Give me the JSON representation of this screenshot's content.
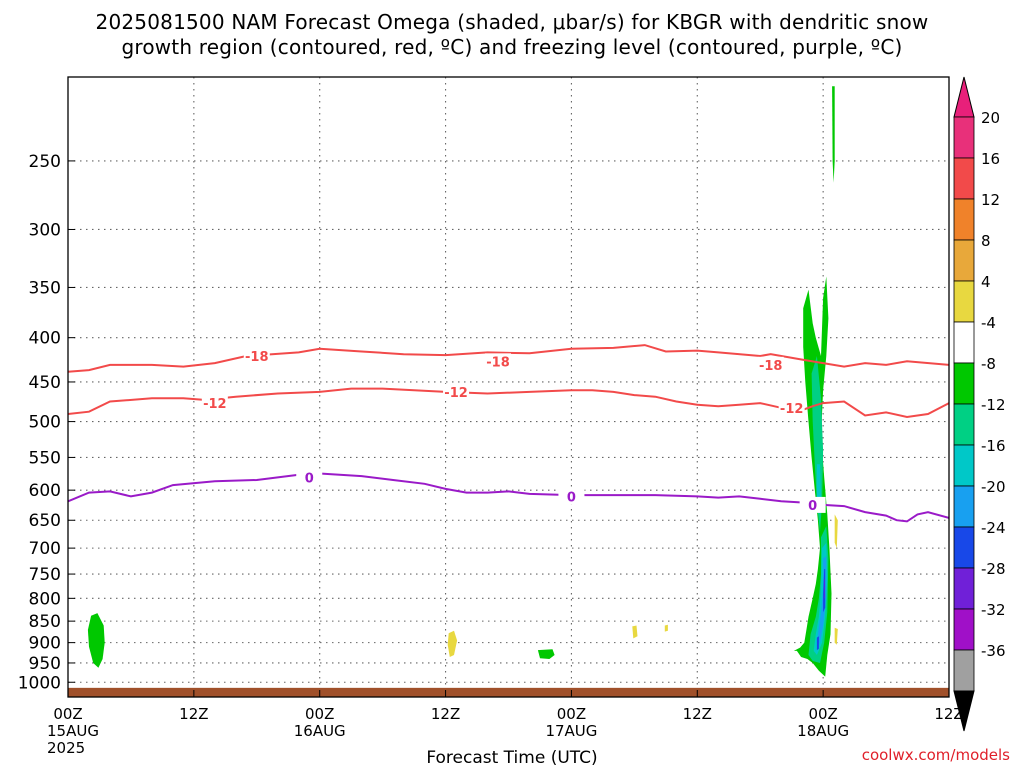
{
  "title_line1": "2025081500 NAM Forecast Omega (shaded, μbar/s) for KBGR with dendritic snow",
  "title_line2": "growth region (contoured, red, ºC) and freezing level (contoured, purple, ºC)",
  "credit": "coolwx.com/models",
  "chart_data": {
    "type": "contour",
    "title": "2025081500 NAM Forecast Omega (shaded, μbar/s) for KBGR with dendritic snow growth region (contoured, red, ºC) and freezing level (contoured, purple, ºC)",
    "xlabel": "Forecast Time (UTC)",
    "ylabel": "",
    "y_scale": "log",
    "y_inverted": true,
    "ylim": [
      1040,
      200
    ],
    "xlim_hours": [
      0,
      84
    ],
    "y_ticks": [
      250,
      300,
      350,
      400,
      450,
      500,
      550,
      600,
      650,
      700,
      750,
      800,
      850,
      900,
      950,
      1000
    ],
    "x_ticks": [
      {
        "h": 0,
        "label": "00Z",
        "sub": [
          "15AUG",
          "2025"
        ]
      },
      {
        "h": 12,
        "label": "12Z",
        "sub": []
      },
      {
        "h": 24,
        "label": "00Z",
        "sub": [
          "16AUG"
        ]
      },
      {
        "h": 36,
        "label": "12Z",
        "sub": []
      },
      {
        "h": 48,
        "label": "00Z",
        "sub": [
          "17AUG"
        ]
      },
      {
        "h": 60,
        "label": "12Z",
        "sub": []
      },
      {
        "h": 72,
        "label": "00Z",
        "sub": [
          "18AUG"
        ]
      },
      {
        "h": 84,
        "label": "12Z",
        "sub": []
      }
    ],
    "grid": true,
    "colorbar": {
      "units": "μbar/s",
      "levels": [
        {
          "label": "20",
          "color": "#e8307a"
        },
        {
          "label": "16",
          "color": "#f24a4a"
        },
        {
          "label": "12",
          "color": "#f0822a"
        },
        {
          "label": "8",
          "color": "#e8a83a"
        },
        {
          "label": "4",
          "color": "#e8d840"
        },
        {
          "label": "-4",
          "color": "#ffffff"
        },
        {
          "label": "-8",
          "color": "#00c800"
        },
        {
          "label": "-12",
          "color": "#00d084"
        },
        {
          "label": "-16",
          "color": "#00c8c8"
        },
        {
          "label": "-20",
          "color": "#18a0f0"
        },
        {
          "label": "-24",
          "color": "#1848e8"
        },
        {
          "label": "-28",
          "color": "#7020d8"
        },
        {
          "label": "-32",
          "color": "#a010c8"
        },
        {
          "label": "-36",
          "color": "#a0a0a0"
        }
      ],
      "top_arrow_color": "#e8207a",
      "bottom_arrow_color": "#000000"
    },
    "contours": [
      {
        "name": "-18",
        "color": "#f24a4a",
        "points": [
          [
            0,
            438
          ],
          [
            2,
            436
          ],
          [
            4,
            430
          ],
          [
            8,
            430
          ],
          [
            11,
            432
          ],
          [
            14,
            428
          ],
          [
            17,
            420
          ],
          [
            22,
            416
          ],
          [
            24,
            412
          ],
          [
            28,
            415
          ],
          [
            32,
            418
          ],
          [
            36,
            419
          ],
          [
            40,
            416
          ],
          [
            44,
            417
          ],
          [
            48,
            412
          ],
          [
            52,
            411
          ],
          [
            55,
            408
          ],
          [
            57,
            415
          ],
          [
            60,
            414
          ],
          [
            62,
            416
          ],
          [
            66,
            420
          ],
          [
            67,
            418
          ],
          [
            70,
            424
          ],
          [
            72,
            428
          ],
          [
            74,
            432
          ],
          [
            76,
            428
          ],
          [
            78,
            430
          ],
          [
            80,
            426
          ],
          [
            84,
            430
          ]
        ],
        "labels": [
          [
            18,
            420
          ],
          [
            41,
            426
          ],
          [
            67,
            430
          ]
        ]
      },
      {
        "name": "-12",
        "color": "#f24a4a",
        "points": [
          [
            0,
            490
          ],
          [
            2,
            487
          ],
          [
            4,
            474
          ],
          [
            8,
            470
          ],
          [
            11,
            470
          ],
          [
            13,
            472
          ],
          [
            16,
            468
          ],
          [
            20,
            464
          ],
          [
            24,
            462
          ],
          [
            27,
            458
          ],
          [
            30,
            458
          ],
          [
            33,
            460
          ],
          [
            36,
            462
          ],
          [
            40,
            464
          ],
          [
            44,
            462
          ],
          [
            48,
            460
          ],
          [
            50,
            460
          ],
          [
            52,
            462
          ],
          [
            54,
            466
          ],
          [
            56,
            468
          ],
          [
            58,
            474
          ],
          [
            60,
            478
          ],
          [
            62,
            480
          ],
          [
            64,
            478
          ],
          [
            66,
            476
          ],
          [
            68,
            482
          ],
          [
            70,
            485
          ],
          [
            71,
            480
          ],
          [
            72,
            476
          ],
          [
            74,
            474
          ],
          [
            76,
            492
          ],
          [
            78,
            488
          ],
          [
            80,
            494
          ],
          [
            82,
            490
          ],
          [
            84,
            476
          ]
        ],
        "labels": [
          [
            14,
            476
          ],
          [
            37,
            462
          ],
          [
            69,
            482
          ]
        ]
      },
      {
        "name": "0",
        "color": "#9a1ac8",
        "points": [
          [
            0,
            618
          ],
          [
            2,
            604
          ],
          [
            4,
            602
          ],
          [
            6,
            610
          ],
          [
            8,
            604
          ],
          [
            10,
            592
          ],
          [
            14,
            586
          ],
          [
            18,
            584
          ],
          [
            22,
            576
          ],
          [
            24,
            574
          ],
          [
            28,
            578
          ],
          [
            31,
            584
          ],
          [
            34,
            590
          ],
          [
            36,
            598
          ],
          [
            38,
            604
          ],
          [
            40,
            604
          ],
          [
            42,
            602
          ],
          [
            44,
            606
          ],
          [
            48,
            608
          ],
          [
            52,
            608
          ],
          [
            56,
            608
          ],
          [
            60,
            610
          ],
          [
            62,
            612
          ],
          [
            64,
            610
          ],
          [
            66,
            614
          ],
          [
            68,
            618
          ],
          [
            70,
            620
          ],
          [
            72,
            624
          ],
          [
            74,
            626
          ],
          [
            76,
            636
          ],
          [
            78,
            642
          ],
          [
            79,
            650
          ],
          [
            80,
            652
          ],
          [
            81,
            640
          ],
          [
            82,
            636
          ],
          [
            84,
            646
          ]
        ],
        "labels": [
          [
            23,
            580
          ],
          [
            48,
            610
          ],
          [
            71,
            624
          ]
        ]
      }
    ],
    "shaded_regions": [
      {
        "value_class": "-8",
        "center": [
          71.2,
          650
        ]
      },
      {
        "value_class": "-24",
        "center": [
          72,
          780
        ]
      },
      {
        "value_class": "-8",
        "center": [
          2.5,
          900
        ]
      },
      {
        "value_class": "-8",
        "center": [
          45.5,
          925
        ]
      },
      {
        "value_class": "-8",
        "center": [
          73,
          200
        ]
      },
      {
        "value_class": "4",
        "center": [
          36.5,
          890
        ]
      },
      {
        "value_class": "4",
        "center": [
          54,
          872
        ]
      },
      {
        "value_class": "4",
        "center": [
          57,
          865
        ]
      },
      {
        "value_class": "4",
        "center": [
          73,
          690
        ]
      }
    ],
    "surface_terrain": {
      "color": "#a0502a",
      "top_pressure": 1015
    }
  }
}
